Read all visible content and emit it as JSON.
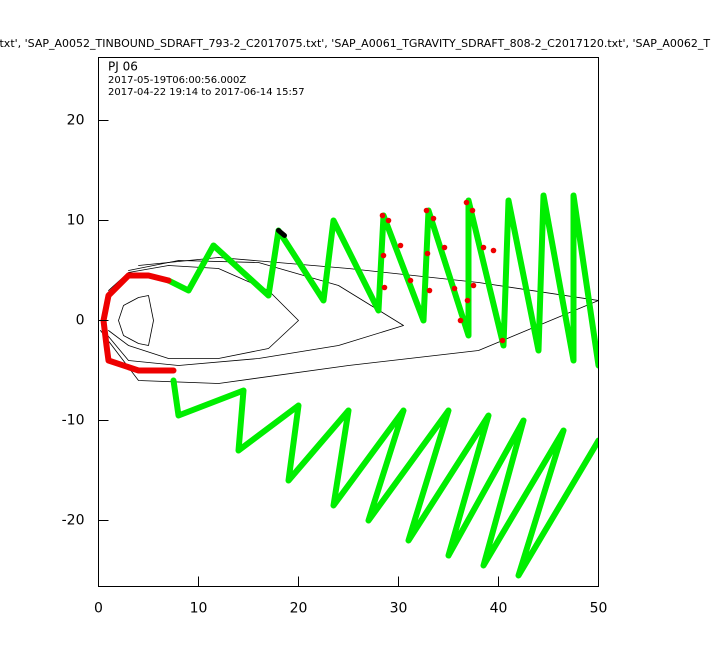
{
  "chart_data": {
    "type": "line",
    "title": ".txt', 'SAP_A0052_TINBOUND_SDRAFT_793-2_C2017075.txt', 'SAP_A0061_TGRAVITY_SDRAFT_808-2_C2017120.txt', 'SAP_A0062_T",
    "annotations": [
      "PJ 06",
      "2017-05-19T06:00:56.000Z",
      "2017-04-22 19:14 to 2017-06-14 15:57"
    ],
    "xlim": [
      0,
      50
    ],
    "ylim": [
      -26.6,
      26.3
    ],
    "xticks": [
      0,
      10,
      20,
      30,
      40,
      50
    ],
    "yticks": [
      -20,
      -10,
      0,
      10,
      20
    ],
    "series": [
      {
        "color": "#000000",
        "width": 0.8,
        "x": [
          5,
          4,
          2.5,
          2,
          2.5,
          4,
          5,
          5.5,
          5
        ],
        "y": [
          2.5,
          2.3,
          1.5,
          0,
          -1.5,
          -2.3,
          -2.5,
          0,
          2.5
        ]
      },
      {
        "color": "#000000",
        "width": 0.8,
        "x": [
          1,
          3,
          7,
          12,
          17,
          20,
          17,
          12,
          7,
          3,
          1
        ],
        "y": [
          3,
          4.8,
          5.5,
          5.2,
          3,
          0,
          -2.8,
          -3.8,
          -3.8,
          -2.5,
          -1
        ]
      },
      {
        "color": "#000000",
        "width": 0.8,
        "x": [
          3,
          8,
          16,
          24,
          30.5,
          24,
          16,
          8,
          3,
          0.5
        ],
        "y": [
          5,
          6,
          5.8,
          3.5,
          -0.5,
          -2.5,
          -3.8,
          -4.5,
          -4,
          -1
        ]
      },
      {
        "color": "#000000",
        "width": 0.8,
        "x": [
          4,
          12,
          25,
          38,
          50,
          38,
          25,
          12,
          4,
          0.2
        ],
        "y": [
          5.5,
          6.3,
          5.2,
          3.8,
          2,
          -3,
          -4.5,
          -6.3,
          -6,
          -1
        ]
      },
      {
        "color": "#00ee00",
        "width": 6,
        "x": [
          7,
          9,
          11.5,
          17,
          18,
          22.5,
          23.5,
          28,
          28.5,
          32.5,
          33,
          37,
          37,
          40.5,
          41,
          44,
          44.5,
          47.5,
          47.5,
          50
        ],
        "y": [
          4,
          3,
          7.5,
          2.5,
          9,
          2,
          10,
          1,
          10.5,
          0,
          11,
          -1.5,
          12,
          -2.5,
          12,
          -3,
          12.5,
          -4,
          12.5,
          -4.5
        ]
      },
      {
        "color": "#00ee00",
        "width": 6,
        "x": [
          7.5,
          8,
          14.5,
          14,
          20,
          19,
          25,
          23.5,
          30.5,
          27,
          35,
          31,
          39,
          35,
          42.5,
          38.5,
          46.5,
          42,
          50
        ],
        "y": [
          -6,
          -9.5,
          -7,
          -13,
          -8.5,
          -16,
          -9,
          -18.5,
          -9,
          -20,
          -9,
          -22,
          -9.5,
          -23.5,
          -10,
          -24.5,
          -11,
          -25.5,
          -12
        ]
      },
      {
        "color": "#ee0000",
        "width": 6,
        "x": [
          7,
          5,
          3,
          1,
          0.5,
          0.8,
          1,
          4,
          7.5
        ],
        "y": [
          4,
          4.5,
          4.5,
          2.5,
          0,
          -2.5,
          -4,
          -5,
          -5
        ]
      },
      {
        "color": "#000000",
        "width": 5,
        "x": [
          18,
          18.6
        ],
        "y": [
          9,
          8.5
        ]
      }
    ],
    "points": {
      "color": "#ee0000",
      "x": [
        28.4,
        29,
        30.2,
        28.5,
        28.6,
        31.2,
        32.8,
        33.5,
        32.9,
        33.1,
        34.6,
        36.8,
        37.4,
        38.5,
        36.9,
        37.5,
        39.5,
        40.4,
        35.6,
        36.2
      ],
      "y": [
        10.5,
        10,
        7.5,
        6.5,
        3.3,
        4,
        11,
        10.2,
        6.7,
        3,
        7.3,
        11.8,
        11,
        7.3,
        2,
        3.5,
        7,
        -2,
        3.2,
        0
      ]
    }
  }
}
